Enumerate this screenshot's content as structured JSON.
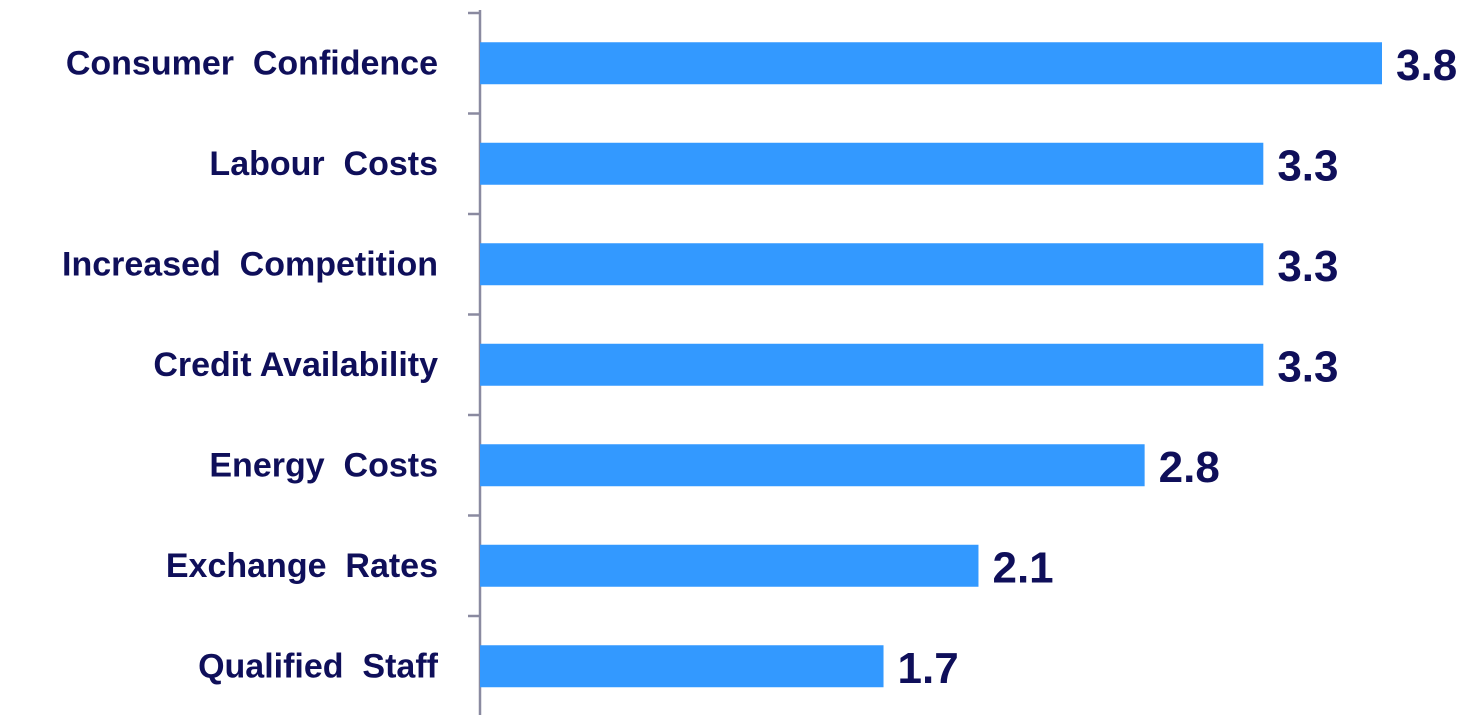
{
  "chart_data": {
    "type": "bar",
    "orientation": "horizontal",
    "categories": [
      "Consumer  Confidence",
      "Labour  Costs",
      "Increased  Competition",
      "Credit Availability",
      "Energy  Costs",
      "Exchange  Rates",
      "Qualified  Staff"
    ],
    "values": [
      3.8,
      3.3,
      3.3,
      3.3,
      2.8,
      2.1,
      1.7
    ],
    "value_labels": [
      "3.8",
      "3.3",
      "3.3",
      "3.3",
      "2.8",
      "2.1",
      "1.7"
    ],
    "title": "",
    "xlabel": "",
    "ylabel": "",
    "xlim": [
      0,
      4
    ],
    "grid": false,
    "legend": "none",
    "colors": {
      "bar": "#3399ff",
      "text": "#0f0f5a",
      "axis": "#8a8aa0"
    }
  }
}
